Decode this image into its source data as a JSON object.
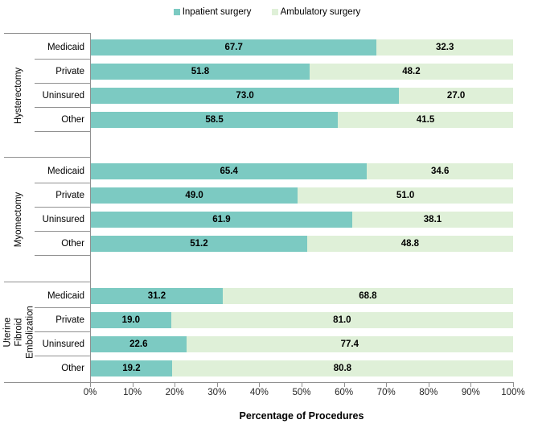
{
  "legend": {
    "items": [
      {
        "label": "Inpatient surgery",
        "color": "#7CCAC2"
      },
      {
        "label": "Ambulatory surgery",
        "color": "#DFF0D8"
      }
    ]
  },
  "chart_data": {
    "type": "bar",
    "variant": "horizontal-stacked-100-percent",
    "title": "",
    "xlabel": "Percentage of Procedures",
    "xlim": [
      0,
      100
    ],
    "x_ticks": [
      "0%",
      "10%",
      "20%",
      "30%",
      "40%",
      "50%",
      "60%",
      "70%",
      "80%",
      "90%",
      "100%"
    ],
    "series_names": [
      "Inpatient surgery",
      "Ambulatory surgery"
    ],
    "colors": {
      "inpatient": "#7CCAC2",
      "ambulatory": "#DFF0D8"
    },
    "legend_position": "top-center",
    "grid": false,
    "groups": [
      {
        "label": "Hysterectomy",
        "rows": [
          {
            "category": "Medicaid",
            "inpatient": 67.7,
            "ambulatory": 32.3
          },
          {
            "category": "Private",
            "inpatient": 51.8,
            "ambulatory": 48.2
          },
          {
            "category": "Uninsured",
            "inpatient": 73.0,
            "ambulatory": 27.0
          },
          {
            "category": "Other",
            "inpatient": 58.5,
            "ambulatory": 41.5
          }
        ]
      },
      {
        "label": "Myomectomy",
        "rows": [
          {
            "category": "Medicaid",
            "inpatient": 65.4,
            "ambulatory": 34.6
          },
          {
            "category": "Private",
            "inpatient": 49.0,
            "ambulatory": 51.0
          },
          {
            "category": "Uninsured",
            "inpatient": 61.9,
            "ambulatory": 38.1
          },
          {
            "category": "Other",
            "inpatient": 51.2,
            "ambulatory": 48.8
          }
        ]
      },
      {
        "label": "Uterine Fibroid\nEmbolization",
        "rows": [
          {
            "category": "Medicaid",
            "inpatient": 31.2,
            "ambulatory": 68.8
          },
          {
            "category": "Private",
            "inpatient": 19.0,
            "ambulatory": 81.0
          },
          {
            "category": "Uninsured",
            "inpatient": 22.6,
            "ambulatory": 77.4
          },
          {
            "category": "Other",
            "inpatient": 19.2,
            "ambulatory": 80.8
          }
        ]
      }
    ]
  }
}
